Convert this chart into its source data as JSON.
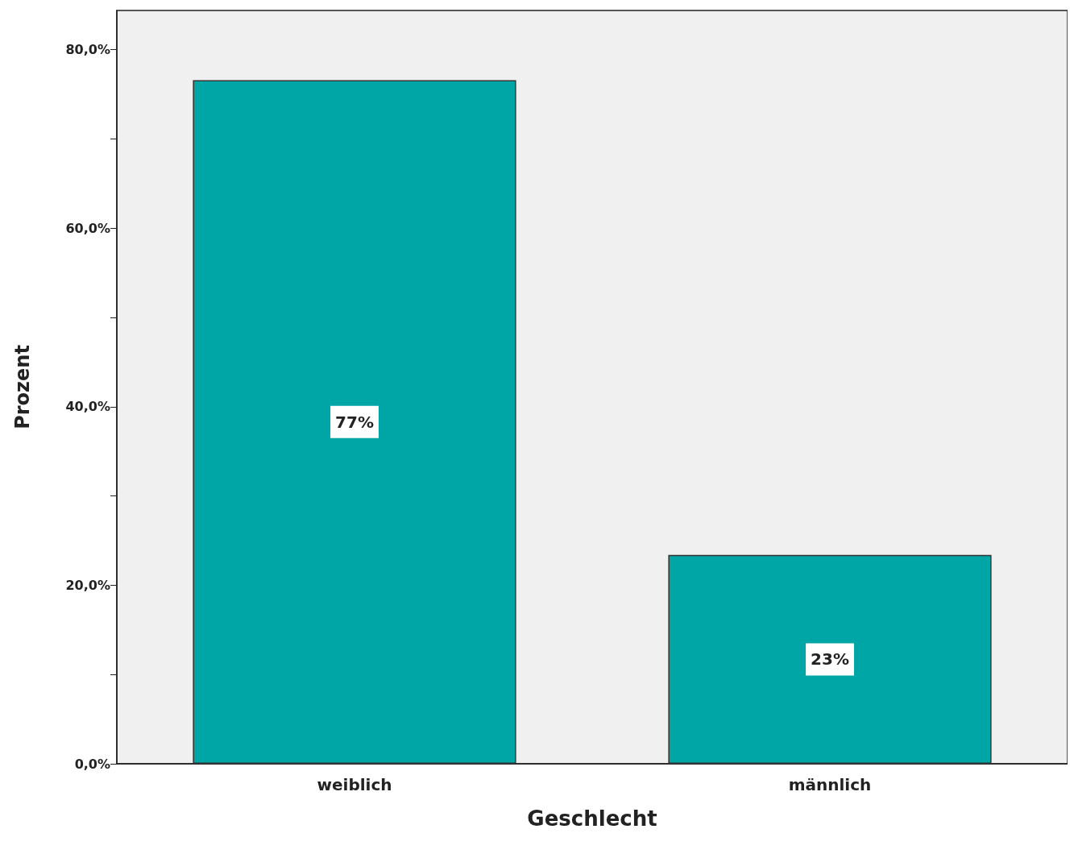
{
  "chart_data": {
    "type": "bar",
    "xlabel": "Geschlecht",
    "ylabel": "Prozent",
    "categories": [
      "weiblich",
      "männlich"
    ],
    "values": [
      76.6,
      23.4
    ],
    "value_labels": [
      "77%",
      "23%"
    ],
    "color": "#00a6a6",
    "ylim": [
      0,
      84.4
    ],
    "yticks": [
      {
        "value": 0,
        "label": "0,0%"
      },
      {
        "value": 10,
        "label": null
      },
      {
        "value": 20,
        "label": "20,0%"
      },
      {
        "value": 30,
        "label": null
      },
      {
        "value": 40,
        "label": "40,0%"
      },
      {
        "value": 50,
        "label": null
      },
      {
        "value": 60,
        "label": "60,0%"
      },
      {
        "value": 70,
        "label": null
      },
      {
        "value": 80,
        "label": "80,0%"
      }
    ],
    "grid": false
  }
}
